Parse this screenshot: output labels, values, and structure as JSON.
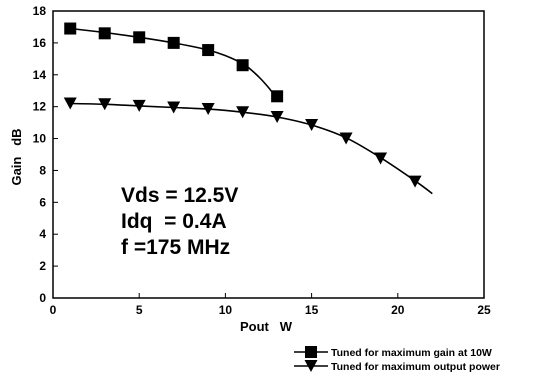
{
  "chart_data": {
    "type": "line",
    "xlabel": "Pout   W",
    "ylabel": "Gain   dB",
    "xlim": [
      0,
      25
    ],
    "ylim": [
      0,
      18
    ],
    "xticks": [
      "0",
      "5",
      "10",
      "15",
      "20",
      "25"
    ],
    "yticks": [
      "0",
      "2",
      "4",
      "6",
      "8",
      "10",
      "12",
      "14",
      "16",
      "18"
    ],
    "grid": false,
    "legend_position": "bottom-right",
    "annotations": [
      "Vds = 12.5V",
      "Idq  = 0.4A",
      "f =175 MHz"
    ],
    "series": [
      {
        "name": "Tuned for maximum gain at 10W",
        "marker": "square",
        "x": [
          1,
          3,
          5,
          7,
          9,
          11,
          13
        ],
        "y": [
          16.9,
          16.6,
          16.35,
          16.0,
          15.55,
          14.6,
          12.65
        ],
        "curve_x": [
          1,
          3,
          5,
          7,
          9,
          10,
          11,
          11.5,
          12,
          12.5,
          13
        ],
        "curve_y": [
          16.9,
          16.65,
          16.35,
          16.0,
          15.55,
          15.2,
          14.7,
          14.3,
          13.8,
          13.2,
          12.5
        ]
      },
      {
        "name": "Tuned for maximum output power",
        "marker": "triangle-down",
        "x": [
          1,
          3,
          5,
          7,
          9,
          11,
          13,
          15,
          17,
          19,
          21
        ],
        "y": [
          12.2,
          12.15,
          12.05,
          11.95,
          11.85,
          11.65,
          11.35,
          10.85,
          10.0,
          8.75,
          7.3
        ],
        "curve_x": [
          1,
          3,
          5,
          7,
          9,
          11,
          13,
          15,
          17,
          19,
          21,
          22
        ],
        "curve_y": [
          12.2,
          12.15,
          12.05,
          11.95,
          11.85,
          11.65,
          11.35,
          10.85,
          10.05,
          8.8,
          7.35,
          6.55
        ]
      }
    ]
  }
}
